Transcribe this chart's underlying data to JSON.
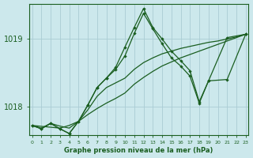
{
  "title": "Graphe pression niveau de la mer (hPa)",
  "bg_color": "#cce8ec",
  "grid_color": "#aaccd4",
  "line_color": "#1a5e20",
  "ylabel_ticks": [
    1018,
    1019
  ],
  "xlim": [
    -0.3,
    23.3
  ],
  "ylim": [
    1017.58,
    1019.52
  ],
  "x_labels": [
    "0",
    "1",
    "2",
    "3",
    "4",
    "5",
    "6",
    "7",
    "8",
    "9",
    "10",
    "11",
    "12",
    "13",
    "14",
    "15",
    "16",
    "17",
    "18",
    "19",
    "20",
    "21",
    "22",
    "23"
  ],
  "lines": [
    {
      "data": [
        [
          0,
          1017.72
        ],
        [
          1,
          1017.68
        ],
        [
          2,
          1017.75
        ],
        [
          3,
          1017.71
        ],
        [
          4,
          1017.68
        ],
        [
          5,
          1017.78
        ],
        [
          6,
          1017.88
        ],
        [
          7,
          1017.97
        ],
        [
          8,
          1018.05
        ],
        [
          9,
          1018.12
        ],
        [
          10,
          1018.2
        ],
        [
          11,
          1018.33
        ],
        [
          12,
          1018.43
        ],
        [
          13,
          1018.52
        ],
        [
          14,
          1018.6
        ],
        [
          15,
          1018.66
        ],
        [
          16,
          1018.72
        ],
        [
          17,
          1018.77
        ],
        [
          18,
          1018.82
        ],
        [
          19,
          1018.87
        ],
        [
          20,
          1018.92
        ],
        [
          21,
          1018.97
        ],
        [
          22,
          1019.02
        ],
        [
          23,
          1019.07
        ]
      ],
      "markers": false,
      "lw": 0.9
    },
    {
      "data": [
        [
          0,
          1017.72
        ],
        [
          3,
          1017.68
        ],
        [
          4,
          1017.72
        ],
        [
          5,
          1017.78
        ],
        [
          6,
          1017.95
        ],
        [
          7,
          1018.15
        ],
        [
          8,
          1018.28
        ],
        [
          9,
          1018.35
        ],
        [
          10,
          1018.42
        ],
        [
          11,
          1018.55
        ],
        [
          12,
          1018.65
        ],
        [
          13,
          1018.72
        ],
        [
          14,
          1018.78
        ],
        [
          15,
          1018.82
        ],
        [
          16,
          1018.86
        ],
        [
          17,
          1018.89
        ],
        [
          18,
          1018.92
        ],
        [
          19,
          1018.95
        ],
        [
          20,
          1018.97
        ],
        [
          21,
          1019.0
        ],
        [
          22,
          1019.03
        ],
        [
          23,
          1019.07
        ]
      ],
      "markers": false,
      "lw": 0.9
    },
    {
      "data": [
        [
          0,
          1017.72
        ],
        [
          1,
          1017.67
        ],
        [
          2,
          1017.75
        ],
        [
          3,
          1017.67
        ],
        [
          4,
          1017.6
        ],
        [
          5,
          1017.78
        ],
        [
          6,
          1018.02
        ],
        [
          7,
          1018.28
        ],
        [
          8,
          1018.42
        ],
        [
          9,
          1018.55
        ],
        [
          10,
          1018.75
        ],
        [
          11,
          1019.08
        ],
        [
          12,
          1019.38
        ],
        [
          13,
          1019.15
        ],
        [
          14,
          1018.93
        ],
        [
          15,
          1018.72
        ],
        [
          16,
          1018.6
        ],
        [
          17,
          1018.45
        ],
        [
          18,
          1018.05
        ],
        [
          19,
          1018.38
        ],
        [
          21,
          1018.4
        ],
        [
          23,
          1019.07
        ]
      ],
      "markers": true,
      "lw": 0.9
    },
    {
      "data": [
        [
          0,
          1017.72
        ],
        [
          1,
          1017.67
        ],
        [
          2,
          1017.75
        ],
        [
          3,
          1017.67
        ],
        [
          4,
          1017.6
        ],
        [
          5,
          1017.78
        ],
        [
          6,
          1018.02
        ],
        [
          7,
          1018.28
        ],
        [
          8,
          1018.42
        ],
        [
          9,
          1018.58
        ],
        [
          10,
          1018.88
        ],
        [
          11,
          1019.17
        ],
        [
          12,
          1019.45
        ],
        [
          13,
          1019.17
        ],
        [
          14,
          1019.0
        ],
        [
          15,
          1018.82
        ],
        [
          16,
          1018.68
        ],
        [
          17,
          1018.53
        ],
        [
          18,
          1018.07
        ],
        [
          19,
          1018.38
        ],
        [
          21,
          1019.02
        ],
        [
          23,
          1019.07
        ]
      ],
      "markers": true,
      "lw": 0.9
    }
  ]
}
